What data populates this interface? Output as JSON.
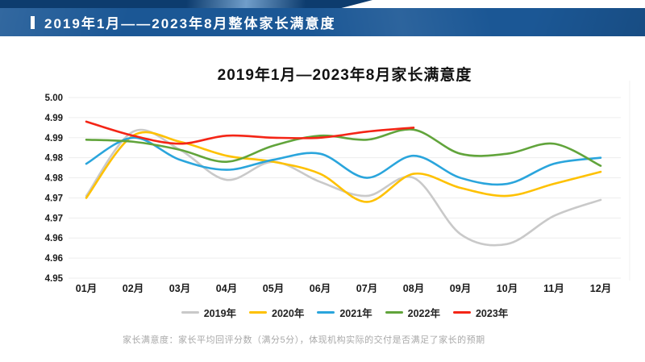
{
  "header": {
    "title": "2019年1月——2023年8月整体家长满意度"
  },
  "chart": {
    "title": "2019年1月—2023年8月家长满意度",
    "footnote": "家长满意度：家长平均回评分数（满分5分），体现机构实际的交付是否满足了家长的预期"
  },
  "chart_data": {
    "type": "line",
    "title": "2019年1月—2023年8月家长满意度",
    "categories": [
      "01月",
      "02月",
      "03月",
      "04月",
      "05月",
      "06月",
      "07月",
      "08月",
      "09月",
      "10月",
      "11月",
      "12月"
    ],
    "y_tick_labels": [
      "5.00",
      "4.99",
      "4.99",
      "4.98",
      "4.98",
      "4.97",
      "4.97",
      "4.96",
      "4.96",
      "4.95"
    ],
    "y_axis": {
      "min": 4.955,
      "max": 5.0,
      "step": 0.005,
      "note": "labels truncated to 2 decimals"
    },
    "grid": true,
    "legend_position": "bottom",
    "line_style": "smooth",
    "series": [
      {
        "name": "2019年",
        "color": "#c9c9c9",
        "values": [
          4.9755,
          4.9915,
          4.987,
          4.9795,
          4.984,
          4.979,
          4.9755,
          4.98,
          4.966,
          4.9635,
          4.9705,
          4.9745
        ]
      },
      {
        "name": "2020年",
        "color": "#fec101",
        "values": [
          4.975,
          4.9905,
          4.989,
          4.9855,
          4.984,
          4.981,
          4.974,
          4.981,
          4.9775,
          4.9755,
          4.9785,
          4.9815
        ]
      },
      {
        "name": "2021年",
        "color": "#2aa5dc",
        "values": [
          4.9835,
          4.99,
          4.9845,
          4.982,
          4.9845,
          4.986,
          4.98,
          4.9855,
          4.98,
          4.9785,
          4.9835,
          4.985
        ]
      },
      {
        "name": "2022年",
        "color": "#61a43b",
        "values": [
          4.9895,
          4.989,
          4.987,
          4.984,
          4.988,
          4.9905,
          4.9895,
          4.992,
          4.986,
          4.986,
          4.9885,
          4.983
        ]
      },
      {
        "name": "2023年",
        "color": "#f42516",
        "values": [
          4.994,
          4.9905,
          4.9885,
          4.9905,
          4.99,
          4.99,
          4.9915,
          4.9925
        ]
      }
    ]
  }
}
